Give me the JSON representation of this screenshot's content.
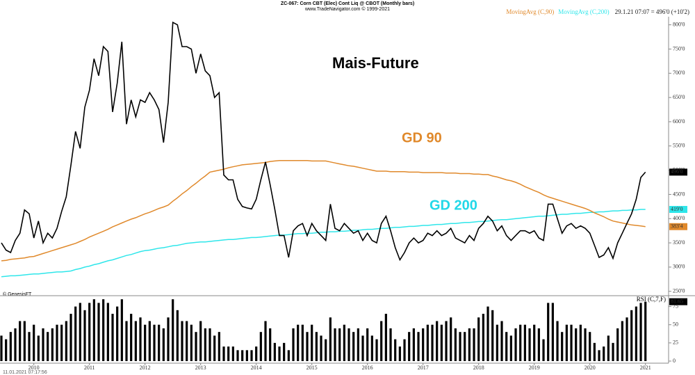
{
  "chart_data": [
    {
      "type": "line",
      "title": "ZC-067: Corn CBT (Elec) Cont Liq @ CBOT (Monthly bars)",
      "subtitle": "www.TradeNavigator.com © 1999-2021",
      "quote": "29.1.21 07:07 = 496'0 (+10'2)",
      "credit": "© GenesisFT",
      "timestamp": "11.01.2021 07:17:56",
      "annotations": [
        {
          "text": "Mais-Future",
          "color": "#000000"
        },
        {
          "text": "GD 90",
          "color": "#e0892b"
        },
        {
          "text": "GD 200",
          "color": "#22d8e8"
        }
      ],
      "categories": [
        null,
        null,
        null,
        null,
        null,
        null,
        null,
        "2010",
        null,
        null,
        null,
        null,
        null,
        null,
        null,
        null,
        null,
        null,
        null,
        "2011",
        null,
        null,
        null,
        null,
        null,
        null,
        null,
        null,
        null,
        null,
        null,
        "2012",
        null,
        null,
        null,
        null,
        null,
        null,
        null,
        null,
        null,
        null,
        null,
        "2013",
        null,
        null,
        null,
        null,
        null,
        null,
        null,
        null,
        null,
        null,
        null,
        "2014",
        null,
        null,
        null,
        null,
        null,
        null,
        null,
        null,
        null,
        null,
        null,
        "2015",
        null,
        null,
        null,
        null,
        null,
        null,
        null,
        null,
        null,
        null,
        null,
        "2016",
        null,
        null,
        null,
        null,
        null,
        null,
        null,
        null,
        null,
        null,
        null,
        "2017",
        null,
        null,
        null,
        null,
        null,
        null,
        null,
        null,
        null,
        null,
        null,
        "2018",
        null,
        null,
        null,
        null,
        null,
        null,
        null,
        null,
        null,
        null,
        null,
        "2019",
        null,
        null,
        null,
        null,
        null,
        null,
        null,
        null,
        null,
        null,
        null,
        "2020",
        null,
        null,
        null,
        null,
        null,
        null,
        null,
        null,
        null,
        null,
        null,
        "2021"
      ],
      "series": [
        {
          "color": "#000000",
          "last_label": "496'0",
          "values": [
            350,
            335,
            330,
            355,
            370,
            418,
            410,
            360,
            395,
            350,
            370,
            360,
            380,
            415,
            445,
            510,
            580,
            545,
            630,
            665,
            730,
            695,
            755,
            745,
            620,
            680,
            765,
            595,
            645,
            610,
            645,
            640,
            660,
            645,
            625,
            557,
            640,
            805,
            800,
            755,
            755,
            750,
            700,
            740,
            705,
            695,
            650,
            660,
            490,
            480,
            480,
            440,
            425,
            422,
            420,
            440,
            480,
            517,
            470,
            420,
            365,
            365,
            320,
            375,
            385,
            390,
            365,
            390,
            375,
            365,
            355,
            430,
            380,
            375,
            390,
            380,
            370,
            375,
            355,
            370,
            355,
            350,
            390,
            405,
            375,
            340,
            315,
            330,
            350,
            360,
            350,
            355,
            370,
            365,
            375,
            365,
            370,
            380,
            360,
            355,
            350,
            365,
            355,
            380,
            390,
            405,
            395,
            375,
            385,
            365,
            355,
            365,
            375,
            375,
            370,
            375,
            360,
            355,
            430,
            430,
            400,
            370,
            385,
            390,
            380,
            385,
            380,
            370,
            345,
            320,
            325,
            340,
            318,
            350,
            370,
            390,
            410,
            440,
            485,
            496
          ]
        },
        {
          "name": "MovingAvg (C,90)",
          "color": "#e0892b",
          "last_label": "383'4",
          "values": [
            313,
            314,
            316,
            317,
            318,
            319,
            321,
            322,
            325,
            328,
            331,
            334,
            337,
            340,
            343,
            346,
            349,
            353,
            357,
            362,
            366,
            370,
            374,
            378,
            383,
            387,
            391,
            395,
            399,
            402,
            406,
            410,
            413,
            417,
            421,
            424,
            428,
            436,
            443,
            451,
            458,
            466,
            473,
            481,
            488,
            496,
            498,
            500,
            502,
            505,
            507,
            509,
            511,
            512,
            513,
            514,
            515,
            516,
            518,
            519,
            520,
            520,
            520,
            520,
            520,
            520,
            520,
            519,
            519,
            519,
            519,
            517,
            515,
            513,
            511,
            509,
            508,
            506,
            504,
            502,
            500,
            498,
            498,
            498,
            497,
            497,
            497,
            497,
            496,
            496,
            496,
            495,
            495,
            495,
            495,
            495,
            494,
            494,
            494,
            493,
            493,
            493,
            492,
            492,
            491,
            491,
            488,
            486,
            483,
            480,
            478,
            475,
            471,
            466,
            462,
            458,
            454,
            449,
            445,
            442,
            439,
            436,
            433,
            430,
            427,
            424,
            421,
            417,
            412,
            408,
            404,
            399,
            395,
            393,
            391,
            389,
            387,
            386,
            385,
            383.5
          ]
        },
        {
          "name": "MovingAvg (C,200)",
          "color": "#2ee6ea",
          "last_label": "419'0",
          "values": [
            280,
            281,
            282,
            282,
            283,
            284,
            285,
            286,
            286,
            287,
            288,
            289,
            290,
            290,
            291,
            292,
            295,
            297,
            300,
            302,
            305,
            307,
            310,
            313,
            315,
            318,
            321,
            324,
            326,
            329,
            332,
            334,
            335,
            337,
            339,
            340,
            342,
            344,
            345,
            347,
            349,
            350,
            351,
            352,
            352,
            353,
            354,
            355,
            356,
            357,
            357,
            358,
            359,
            360,
            361,
            361,
            362,
            363,
            364,
            365,
            366,
            366,
            367,
            368,
            369,
            369,
            370,
            370,
            371,
            372,
            372,
            373,
            373,
            374,
            374,
            375,
            376,
            376,
            377,
            378,
            378,
            379,
            380,
            380,
            381,
            382,
            382,
            383,
            384,
            384,
            385,
            386,
            386,
            387,
            388,
            388,
            389,
            390,
            390,
            391,
            392,
            392,
            393,
            394,
            394,
            395,
            396,
            397,
            398,
            398,
            399,
            400,
            401,
            402,
            403,
            404,
            405,
            405,
            406,
            407,
            408,
            409,
            409,
            410,
            411,
            411,
            412,
            413,
            413,
            414,
            414,
            415,
            416,
            416,
            417,
            417,
            418,
            418,
            419,
            419
          ]
        }
      ],
      "ylim": [
        241,
        811
      ],
      "yticks": [
        {
          "value": 250,
          "label": "250'0"
        },
        {
          "value": 300,
          "label": "300'0"
        },
        {
          "value": 350,
          "label": "350'0"
        },
        {
          "value": 400,
          "label": "400'0"
        },
        {
          "value": 450,
          "label": "450'0"
        },
        {
          "value": 500,
          "label": "500'0"
        },
        {
          "value": 550,
          "label": "550'0"
        },
        {
          "value": 600,
          "label": "600'0"
        },
        {
          "value": 650,
          "label": "650'0"
        },
        {
          "value": 700,
          "label": "700'0"
        },
        {
          "value": 750,
          "label": "750'0"
        },
        {
          "value": 800,
          "label": "800'0"
        }
      ]
    },
    {
      "type": "bar",
      "title": "RSI (C,7,F)",
      "color": "#000000",
      "values": [
        35,
        30,
        40,
        45,
        55,
        55,
        40,
        50,
        35,
        45,
        40,
        45,
        50,
        50,
        55,
        65,
        75,
        80,
        70,
        80,
        85,
        80,
        85,
        80,
        65,
        75,
        85,
        55,
        65,
        55,
        60,
        50,
        55,
        50,
        50,
        45,
        60,
        85,
        70,
        55,
        55,
        50,
        40,
        55,
        45,
        45,
        35,
        40,
        20,
        20,
        20,
        15,
        15,
        15,
        15,
        20,
        40,
        55,
        45,
        25,
        20,
        25,
        15,
        45,
        50,
        50,
        40,
        50,
        40,
        35,
        30,
        60,
        45,
        45,
        50,
        45,
        40,
        45,
        35,
        45,
        35,
        30,
        55,
        65,
        45,
        30,
        20,
        30,
        40,
        45,
        40,
        45,
        50,
        50,
        55,
        50,
        55,
        60,
        45,
        40,
        40,
        45,
        45,
        60,
        65,
        75,
        70,
        50,
        55,
        40,
        35,
        45,
        50,
        50,
        45,
        50,
        45,
        30,
        80,
        80,
        55,
        40,
        50,
        50,
        45,
        50,
        45,
        40,
        25,
        15,
        20,
        35,
        25,
        45,
        55,
        60,
        70,
        75,
        80,
        81.65
      ],
      "ylim": [
        0,
        88
      ],
      "yticks": [
        0,
        25,
        50,
        75
      ]
    }
  ]
}
